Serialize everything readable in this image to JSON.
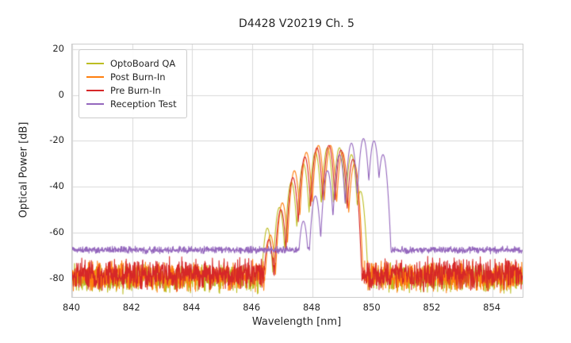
{
  "chart_data": {
    "type": "line",
    "title": "D4428 V20219 Ch. 5",
    "xlabel": "Wavelength [nm]",
    "ylabel": "Optical Power [dB]",
    "xlim": [
      840,
      855
    ],
    "ylim": [
      -88,
      22
    ],
    "xticks": [
      840,
      842,
      844,
      846,
      848,
      850,
      852,
      854
    ],
    "yticks": [
      20,
      0,
      -20,
      -40,
      -60,
      -80
    ],
    "grid": true,
    "grid_color": "#d9d9d9",
    "legend_position": "upper left",
    "mode_width_nm": 0.13,
    "sample_step_nm": 0.01,
    "series": [
      {
        "name": "OptoBoard QA",
        "color": "#bcbd22",
        "noise_floor": -80,
        "noise_amplitude": 7,
        "modes": [
          [
            846.5,
            -58
          ],
          [
            846.9,
            -49
          ],
          [
            847.3,
            -38
          ],
          [
            847.7,
            -30
          ],
          [
            848.1,
            -25
          ],
          [
            848.5,
            -23
          ],
          [
            848.9,
            -23
          ],
          [
            849.3,
            -26
          ],
          [
            849.6,
            -42
          ]
        ]
      },
      {
        "name": "Post Burn-In",
        "color": "#ff7f0e",
        "noise_floor": -79,
        "noise_amplitude": 7.5,
        "modes": [
          [
            846.6,
            -61
          ],
          [
            847.0,
            -47
          ],
          [
            847.4,
            -33
          ],
          [
            847.8,
            -25
          ],
          [
            848.2,
            -22
          ],
          [
            848.6,
            -22
          ],
          [
            849.0,
            -25
          ],
          [
            849.4,
            -30
          ]
        ]
      },
      {
        "name": "Pre Burn-In",
        "color": "#d62728",
        "noise_floor": -78,
        "noise_amplitude": 8,
        "modes": [
          [
            846.55,
            -63
          ],
          [
            846.95,
            -50
          ],
          [
            847.35,
            -36
          ],
          [
            847.75,
            -27
          ],
          [
            848.15,
            -23
          ],
          [
            848.55,
            -22
          ],
          [
            848.95,
            -24
          ],
          [
            849.35,
            -28
          ]
        ]
      },
      {
        "name": "Reception Test",
        "color": "#9467bd",
        "noise_floor": -67.5,
        "noise_amplitude": 1.8,
        "modes": [
          [
            847.7,
            -55
          ],
          [
            848.1,
            -44
          ],
          [
            848.5,
            -33
          ],
          [
            848.9,
            -26
          ],
          [
            849.3,
            -21
          ],
          [
            849.7,
            -19
          ],
          [
            850.05,
            -20
          ],
          [
            850.35,
            -26
          ]
        ]
      }
    ]
  }
}
